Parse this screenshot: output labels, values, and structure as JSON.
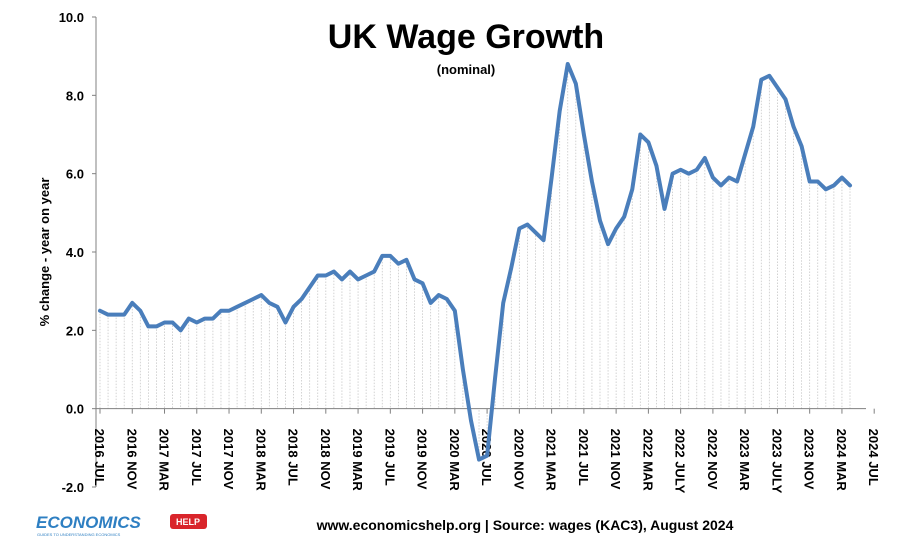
{
  "chart_data": {
    "type": "line",
    "title": "UK Wage Growth",
    "subtitle": "(nominal)",
    "ylabel": "% change  - year on year",
    "xlabel": "",
    "ylim": [
      -2.0,
      10.0
    ],
    "yticks": [
      "-2.0",
      "0.0",
      "2.0",
      "4.0",
      "6.0",
      "8.0",
      "10.0"
    ],
    "ytick_values": [
      -2,
      0,
      2,
      4,
      6,
      8,
      10
    ],
    "x_tick_labels": [
      "2016 JUL",
      "2016 NOV",
      "2017 MAR",
      "2017 JUL",
      "2017 NOV",
      "2018 MAR",
      "2018 JUL",
      "2018 NOV",
      "2019 MAR",
      "2019 JUL",
      "2019 NOV",
      "2020 MAR",
      "2020 JUL",
      "2020 NOV",
      "2021 MAR",
      "2021 JUL",
      "2021 NOV",
      "2022 MAR",
      "2022 JULY",
      "2022 NOV",
      "2023 MAR",
      "2023 JULY",
      "2023 NOV",
      "2024 MAR",
      "2024 JUL"
    ],
    "grid": "vertical dotted drop lines",
    "legend": "none",
    "line_color": "#4a7ebb",
    "series": [
      {
        "name": "",
        "start": "2016 JUL",
        "frequency": "monthly",
        "values": [
          2.5,
          2.4,
          2.4,
          2.4,
          2.7,
          2.5,
          2.1,
          2.1,
          2.2,
          2.2,
          2.0,
          2.3,
          2.2,
          2.3,
          2.3,
          2.5,
          2.5,
          2.6,
          2.7,
          2.8,
          2.9,
          2.7,
          2.6,
          2.2,
          2.6,
          2.8,
          3.1,
          3.4,
          3.4,
          3.5,
          3.3,
          3.5,
          3.3,
          3.4,
          3.5,
          3.9,
          3.9,
          3.7,
          3.8,
          3.3,
          3.2,
          2.7,
          2.9,
          2.8,
          2.5,
          1.0,
          -0.3,
          -1.3,
          -1.2,
          0.8,
          2.7,
          3.6,
          4.6,
          4.7,
          4.5,
          4.3,
          5.9,
          7.6,
          8.8,
          8.3,
          7.0,
          5.8,
          4.8,
          4.2,
          4.6,
          4.9,
          5.6,
          7.0,
          6.8,
          6.2,
          5.1,
          6.0,
          6.1,
          6.0,
          6.1,
          6.4,
          5.9,
          5.7,
          5.9,
          5.8,
          6.5,
          7.2,
          8.4,
          8.5,
          8.2,
          7.9,
          7.2,
          6.7,
          5.8,
          5.8,
          5.6,
          5.7,
          5.9,
          5.7
        ]
      }
    ]
  },
  "footer": {
    "source": "www.economicshelp.org | Source: wages (KAC3), August 2024"
  },
  "logo": {
    "text": "ECONOMICS",
    "badge": "HELP",
    "tagline": "GUIDES TO UNDERSTANDING ECONOMICS"
  }
}
